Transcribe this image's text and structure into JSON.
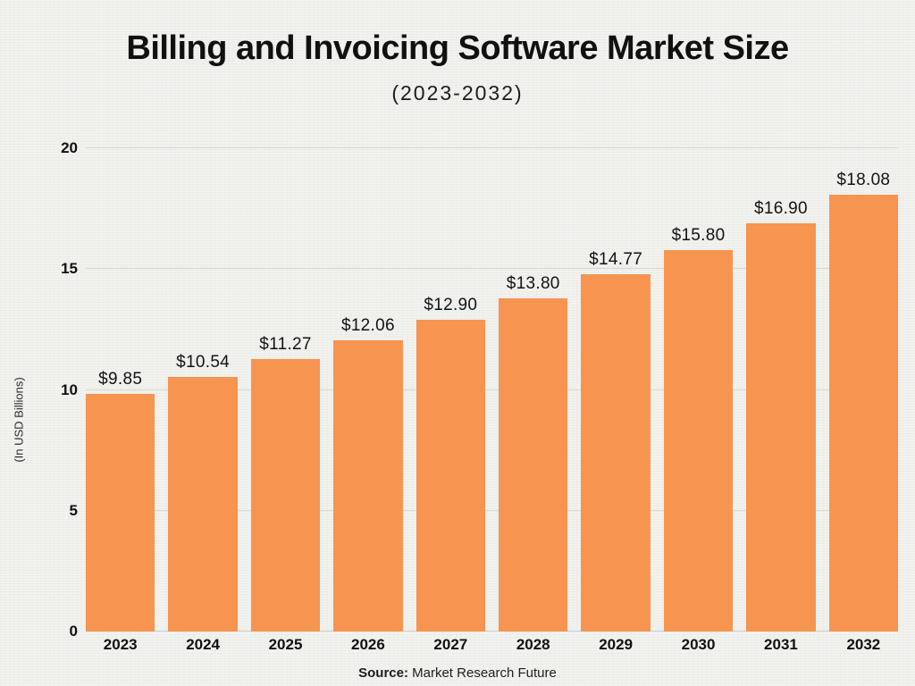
{
  "header": {
    "title": "Billing and Invoicing Software Market Size",
    "subtitle": "(2023-2032)"
  },
  "chart_data": {
    "type": "bar",
    "categories": [
      "2023",
      "2024",
      "2025",
      "2026",
      "2027",
      "2028",
      "2029",
      "2030",
      "2031",
      "2032"
    ],
    "values": [
      9.85,
      10.54,
      11.27,
      12.06,
      12.9,
      13.8,
      14.77,
      15.8,
      16.9,
      18.08
    ],
    "value_labels": [
      "$9.85",
      "$10.54",
      "$11.27",
      "$12.06",
      "$12.90",
      "$13.80",
      "$14.77",
      "$15.80",
      "$16.90",
      "$18.08"
    ],
    "title": "Billing and Invoicing Software Market Size (2023-2032)",
    "xlabel": "",
    "ylabel": "(In USD Billions)",
    "ylim": [
      0,
      20
    ],
    "yticks": [
      0,
      5,
      10,
      15,
      20
    ],
    "grid": true,
    "legend": "none",
    "bar_color": "#F79450",
    "gridline_color": "#d9d9d3",
    "background_color": "#f2f2ef"
  },
  "footer": {
    "source_label": "Source:",
    "source_text": " Market Research Future"
  }
}
